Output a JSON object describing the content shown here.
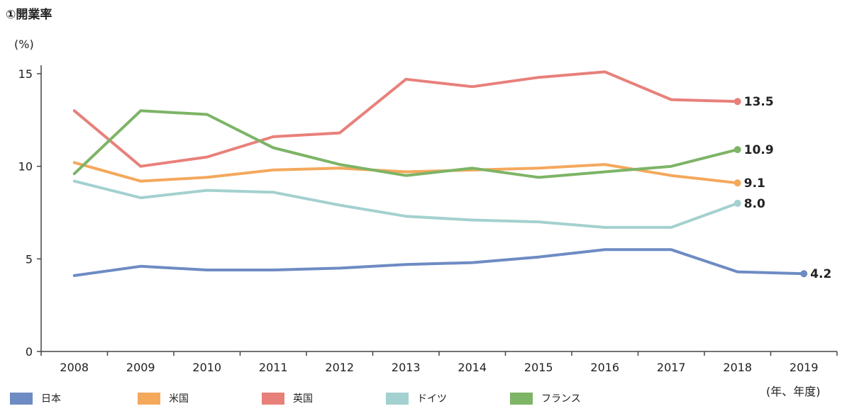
{
  "chart_data": {
    "type": "line",
    "title": "①開業率",
    "ylabel": "(%)",
    "xlabel": "(年、年度)",
    "ylim": [
      0,
      15
    ],
    "yticks": [
      "0",
      "5",
      "10",
      "15"
    ],
    "categories": [
      "2008",
      "2009",
      "2010",
      "2011",
      "2012",
      "2013",
      "2014",
      "2015",
      "2016",
      "2017",
      "2018",
      "2019"
    ],
    "grid": false,
    "legend_position": "bottom",
    "series": [
      {
        "name": "日本",
        "color": "#6e8bc3",
        "values": [
          4.1,
          4.6,
          4.4,
          4.4,
          4.5,
          4.7,
          4.8,
          5.1,
          5.5,
          5.5,
          4.3,
          4.2
        ],
        "end_label": "4.2"
      },
      {
        "name": "米国",
        "color": "#f4a85c",
        "values": [
          10.2,
          9.2,
          9.4,
          9.8,
          9.9,
          9.7,
          9.8,
          9.9,
          10.1,
          9.5,
          9.1,
          null
        ],
        "end_label": "9.1"
      },
      {
        "name": "英国",
        "color": "#e8807a",
        "values": [
          13.0,
          10.0,
          10.5,
          11.6,
          11.8,
          14.7,
          14.3,
          14.8,
          15.1,
          13.6,
          13.5,
          null
        ],
        "end_label": "13.5"
      },
      {
        "name": "ドイツ",
        "color": "#a3d1cf",
        "values": [
          9.2,
          8.3,
          8.7,
          8.6,
          7.9,
          7.3,
          7.1,
          7.0,
          6.7,
          6.7,
          8.0,
          null
        ],
        "end_label": "8.0"
      },
      {
        "name": "フランス",
        "color": "#7db466",
        "values": [
          9.6,
          13.0,
          12.8,
          11.0,
          10.1,
          9.5,
          9.9,
          9.4,
          9.7,
          10.0,
          10.9,
          null
        ],
        "end_label": "10.9"
      }
    ]
  }
}
